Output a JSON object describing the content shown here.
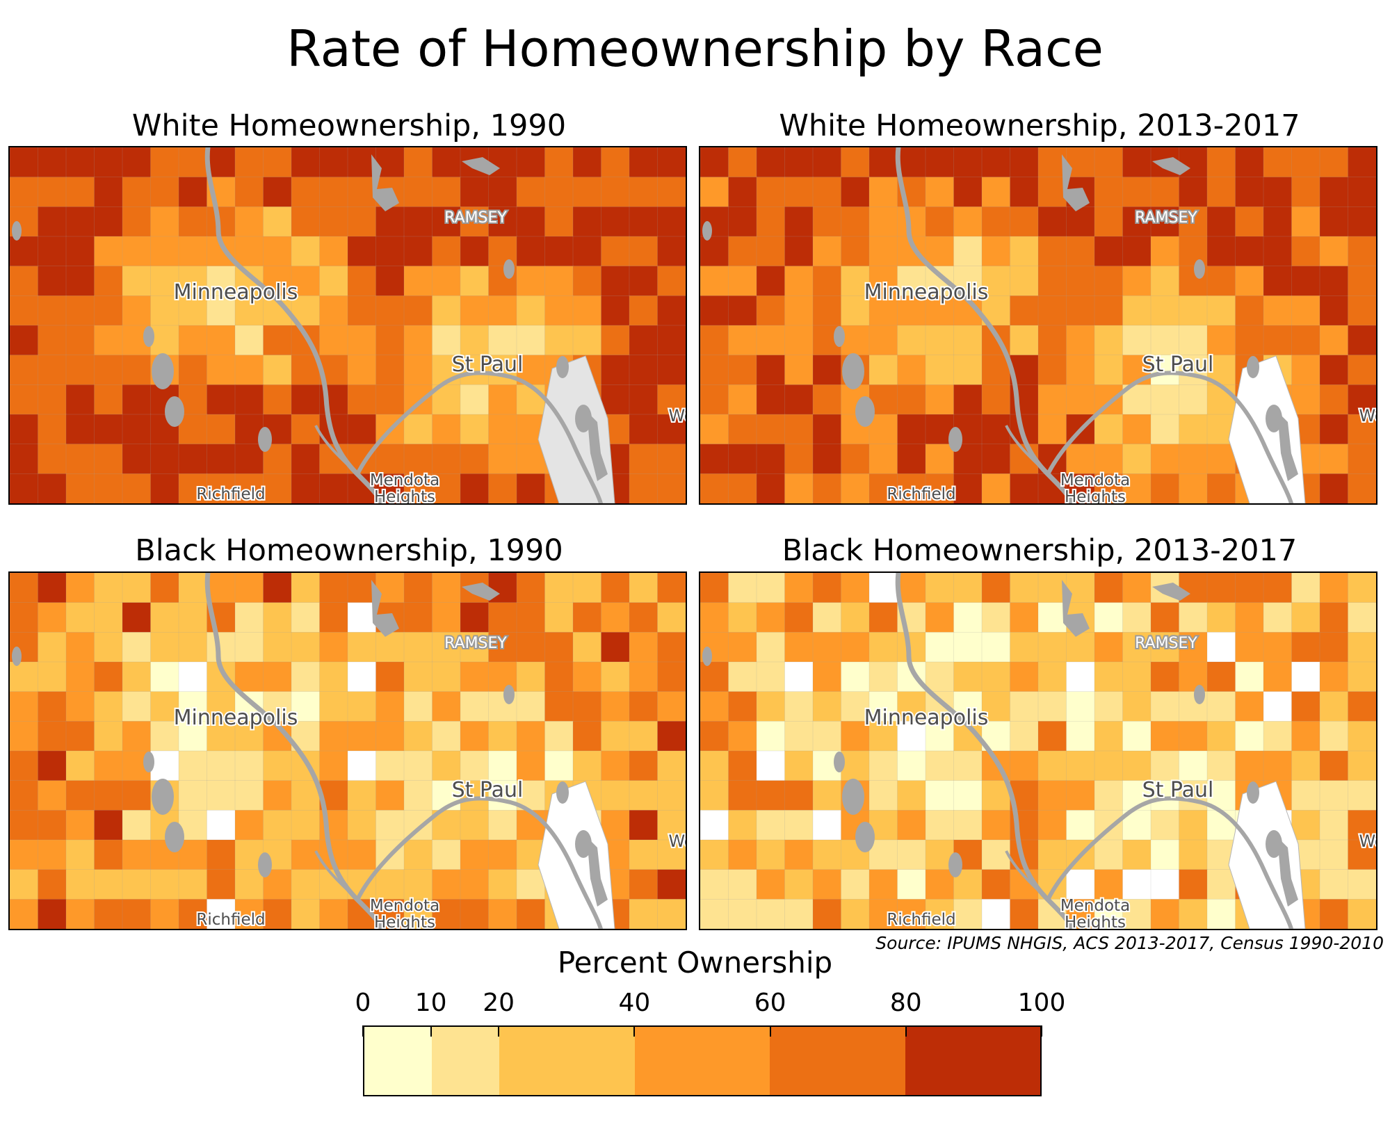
{
  "title": "Rate of Homeownership by Race",
  "panels": [
    {
      "title": "White Homeownership, 1990",
      "variant": "white1990"
    },
    {
      "title": "White Homeownership, 2013-2017",
      "variant": "white2017"
    },
    {
      "title": "Black Homeownership, 1990",
      "variant": "black1990"
    },
    {
      "title": "Black Homeownership, 2013-2017",
      "variant": "black2017"
    }
  ],
  "map_labels": {
    "ramsey": "RAMSEY",
    "minneapolis": "Minneapolis",
    "st_paul": "St Paul",
    "richfield": "Richfield",
    "mendota": "Mendota",
    "heights": "Heights",
    "west_cut": "We"
  },
  "source": "Source: IPUMS NHGIS, ACS 2013-2017, Census 1990-2010",
  "legend": {
    "title": "Percent Ownership",
    "ticks": [
      "0",
      "10",
      "20",
      "40",
      "60",
      "80",
      "100"
    ],
    "tick_values": [
      0,
      10,
      20,
      40,
      60,
      80,
      100
    ],
    "classes": [
      {
        "range": "0-10",
        "color": "#ffffcc"
      },
      {
        "range": "10-20",
        "color": "#fee391"
      },
      {
        "range": "20-40",
        "color": "#fec44f"
      },
      {
        "range": "40-60",
        "color": "#fe9929"
      },
      {
        "range": "60-80",
        "color": "#ec7014"
      },
      {
        "range": "80-100",
        "color": "#bd2d06"
      }
    ]
  },
  "colors": {
    "water": "#a6a6a6",
    "no_data": "#ffffff",
    "boundary": "#b0b0b0"
  }
}
